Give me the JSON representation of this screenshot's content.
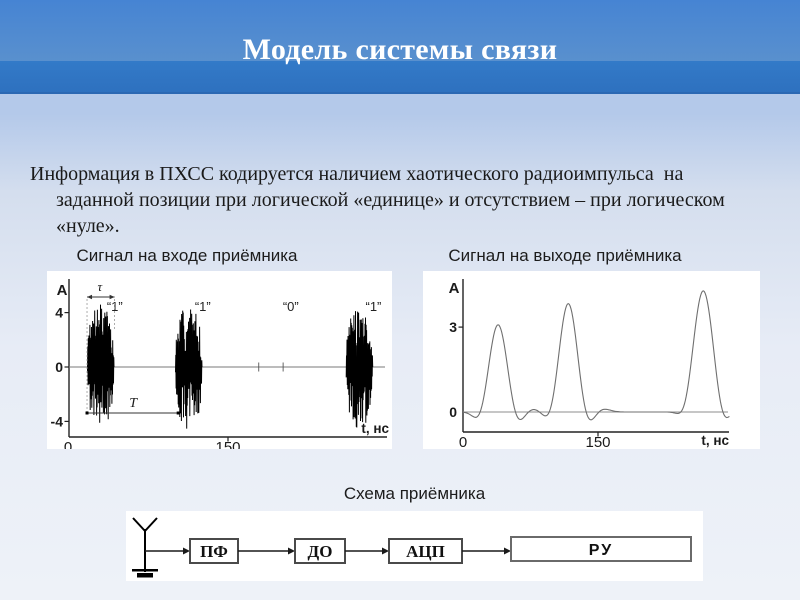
{
  "slide": {
    "title": "Модель системы связи",
    "paragraph_lines": [
      "Информация в ПХСС кодируется наличием хаотического радиоимпульса  на",
      "заданной позиции при логической «единице» и отсутствием – при логическом",
      "«нуле»."
    ],
    "diagram": {
      "title": "Схема приёмника",
      "blocks": [
        "ПФ",
        "ДО",
        "АЦП",
        "РУ"
      ],
      "has_antenna_symbol": true,
      "flow": "антенна → ПФ → ДО → АЦП → РУ"
    }
  },
  "chart_data": [
    {
      "type": "line",
      "title": "Сигнал на входе приёмника",
      "xlabel": "t, нс",
      "ylabel": "A",
      "x_ticks": [
        0,
        150
      ],
      "y_ticks": [
        4,
        0,
        -4
      ],
      "xlim": [
        0,
        305
      ],
      "ylim": [
        -5.5,
        5.5
      ],
      "signal_style": "chaotic-noise-bursts",
      "bits": [
        {
          "bit": "1",
          "label": "“1”",
          "t": 30,
          "has_burst": true
        },
        {
          "bit": "1",
          "label": "“1”",
          "t": 113,
          "has_burst": true
        },
        {
          "bit": "0",
          "label": "“0”",
          "t": 196,
          "has_burst": false
        },
        {
          "bit": "1",
          "label": "“1”",
          "t": 274,
          "has_burst": true
        }
      ],
      "burst": {
        "width_ns": 25,
        "peak_amplitude": 4.6
      },
      "zero_tick_ts": [
        179,
        202
      ],
      "annotations": [
        {
          "label": "τ",
          "meaning": "длительность импульса",
          "from_t": 17,
          "to_t": 43
        },
        {
          "label": "T",
          "meaning": "период следования",
          "from_t": 17,
          "to_t": 103
        }
      ]
    },
    {
      "type": "line",
      "title": "Сигнал на выходе приёмника",
      "xlabel": "t, нс",
      "ylabel": "A",
      "x_ticks": [
        0,
        150
      ],
      "y_ticks": [
        3,
        0
      ],
      "xlim": [
        0,
        300
      ],
      "ylim": [
        -1,
        4.6
      ],
      "signal_style": "smooth-detected-pulses",
      "peaks": [
        {
          "t": 39,
          "A": 3.1
        },
        {
          "t": 117,
          "A": 3.85
        },
        {
          "t": 267,
          "A": 4.3
        }
      ],
      "pulse_width_ns": 10,
      "sidelobe_depth": 0.5
    }
  ],
  "colors": {
    "header_top": "#4684d3",
    "header_bottom": "#2e71bf",
    "header_accent_line": "#2b68b3",
    "background_top": "#b4c9ea",
    "background_bottom": "#eef2f8",
    "panel": "#ffffff",
    "title_text": "#ffffff",
    "body_text": "#1a1a1a"
  }
}
